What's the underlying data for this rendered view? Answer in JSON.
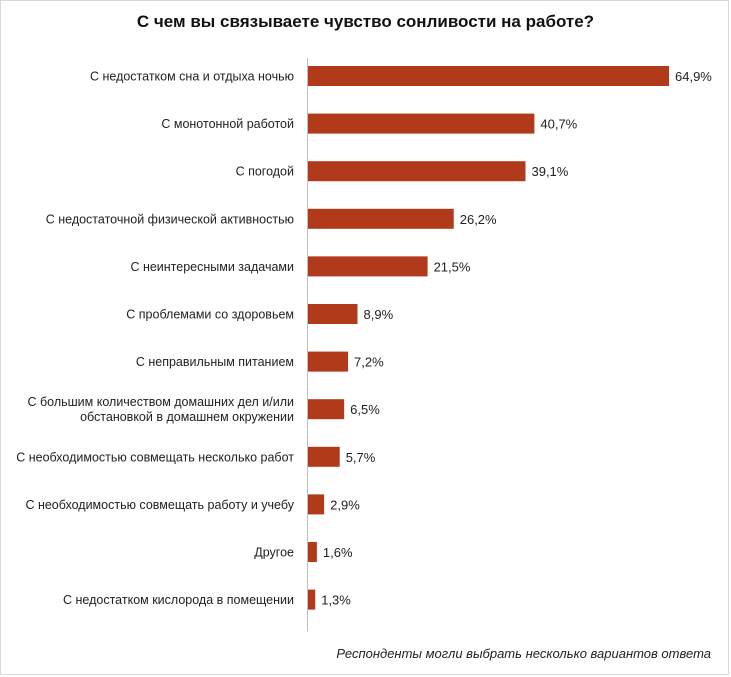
{
  "chart_data": {
    "type": "bar",
    "orientation": "horizontal",
    "title": "С чем вы связываете чувство сонливости на работе?",
    "categories": [
      [
        "С недостатком сна и отдыха ночью"
      ],
      [
        "С монотонной работой"
      ],
      [
        "С погодой"
      ],
      [
        "С недостаточной физической активностью"
      ],
      [
        "С неинтересными задачами"
      ],
      [
        "С проблемами со здоровьем"
      ],
      [
        "С неправильным питанием"
      ],
      [
        "С большим количеством домашних дел и/или",
        "обстановкой в домашнем окружении"
      ],
      [
        "С необходимостью совмещать несколько работ"
      ],
      [
        "С необходимостью совмещать работу и учебу"
      ],
      [
        "Другое"
      ],
      [
        "С недостатком кислорода в помещении"
      ]
    ],
    "values": [
      64.9,
      40.7,
      39.1,
      26.2,
      21.5,
      8.9,
      7.2,
      6.5,
      5.7,
      2.9,
      1.6,
      1.3
    ],
    "value_labels": [
      "64,9%",
      "40,7%",
      "39,1%",
      "26,2%",
      "21,5%",
      "8,9%",
      "7,2%",
      "6,5%",
      "5,7%",
      "2,9%",
      "1,6%",
      "1,3%"
    ],
    "bar_color": "#b03a1a",
    "xlim": [
      0,
      70
    ],
    "grid": false,
    "legend": "none",
    "footnote": "Респонденты могли выбрать несколько вариантов ответа"
  }
}
